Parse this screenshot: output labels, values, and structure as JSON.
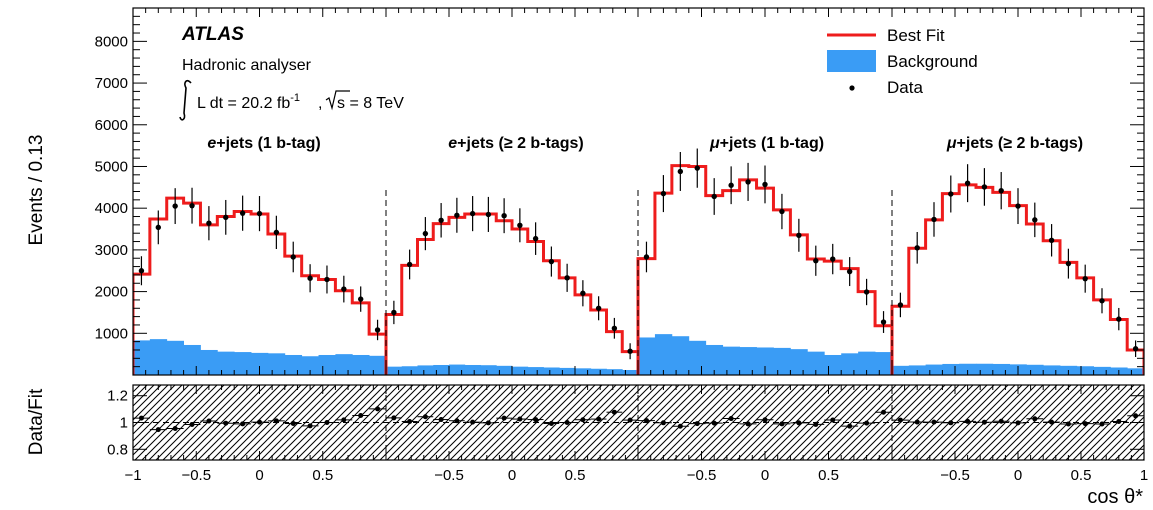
{
  "chart_data": {
    "type": "histogram",
    "experiment": "ATLAS",
    "analyser_label": "Hadronic analyser",
    "lumi_label": "L dt = 20.2 fb",
    "lumi_exp": "-1",
    "energy_label": "s = 8 TeV",
    "ylabel": "Events / 0.13",
    "ratio_ylabel": "Data/Fit",
    "xlabel": "cos θ*",
    "main_ylim": [
      0,
      8800
    ],
    "main_yticks": [
      "1000",
      "2000",
      "3000",
      "4000",
      "5000",
      "6000",
      "7000",
      "8000"
    ],
    "ratio_ylim": [
      0.72,
      1.28
    ],
    "ratio_yticks": [
      "0.8",
      "1",
      "1.2"
    ],
    "xticks": [
      [
        "−1",
        "−0.5",
        "0",
        "0.5"
      ],
      [
        "−0.5",
        "0",
        "0.5"
      ],
      [
        "−0.5",
        "0",
        "0.5"
      ],
      [
        "−0.5",
        "0",
        "0.5",
        "1"
      ]
    ],
    "legend": {
      "best_fit": "Best Fit",
      "background": "Background",
      "data": "Data"
    },
    "colors": {
      "fit": "#ee1c1c",
      "background": "#3a9cf5",
      "data": "#000000"
    },
    "channels": [
      {
        "label_pre": "e",
        "label_post": "+jets (1 b-tag)",
        "fit": [
          2420,
          3740,
          4240,
          4120,
          3600,
          3800,
          3920,
          3860,
          3380,
          2850,
          2380,
          2290,
          2020,
          1730,
          980
        ],
        "data": [
          2500,
          3540,
          4050,
          4060,
          3640,
          3780,
          3880,
          3870,
          3420,
          2830,
          2320,
          2290,
          2060,
          1820,
          1080
        ],
        "background": [
          830,
          860,
          820,
          720,
          600,
          560,
          550,
          530,
          520,
          480,
          450,
          480,
          500,
          480,
          460
        ]
      },
      {
        "label_pre": "e",
        "label_post": "+jets (≥ 2 b-tags)",
        "fit": [
          1450,
          2630,
          3250,
          3630,
          3780,
          3860,
          3860,
          3700,
          3500,
          3200,
          2740,
          2330,
          1920,
          1560,
          1040,
          560
        ],
        "data": [
          1500,
          2650,
          3390,
          3710,
          3830,
          3870,
          3850,
          3820,
          3590,
          3270,
          2720,
          2330,
          1960,
          1600,
          1120,
          570
        ],
        "background": [
          200,
          210,
          230,
          240,
          250,
          240,
          235,
          220,
          200,
          190,
          180,
          170,
          160,
          150,
          140,
          120
        ]
      },
      {
        "label_pre": "μ",
        "label_post": "+jets (1 b-tag)",
        "fit": [
          2790,
          4360,
          5020,
          5000,
          4300,
          4420,
          4680,
          4480,
          3960,
          3360,
          2780,
          2730,
          2550,
          2000,
          1180
        ],
        "data": [
          2830,
          4350,
          4880,
          4960,
          4280,
          4550,
          4630,
          4570,
          3920,
          3350,
          2740,
          2780,
          2480,
          1990,
          1270
        ],
        "background": [
          900,
          980,
          930,
          820,
          720,
          680,
          670,
          660,
          650,
          620,
          560,
          480,
          520,
          560,
          550
        ]
      },
      {
        "label_pre": "μ",
        "label_post": "+jets (≥ 2 b-tags)",
        "fit": [
          1650,
          3040,
          3720,
          4350,
          4560,
          4500,
          4380,
          4060,
          3620,
          3220,
          2700,
          2330,
          1800,
          1330,
          600
        ],
        "data": [
          1680,
          3050,
          3730,
          4340,
          4600,
          4510,
          4420,
          4050,
          3720,
          3230,
          2670,
          2310,
          1780,
          1340,
          630
        ],
        "background": [
          220,
          230,
          250,
          265,
          270,
          270,
          265,
          255,
          245,
          230,
          220,
          210,
          195,
          180,
          160
        ]
      }
    ]
  }
}
